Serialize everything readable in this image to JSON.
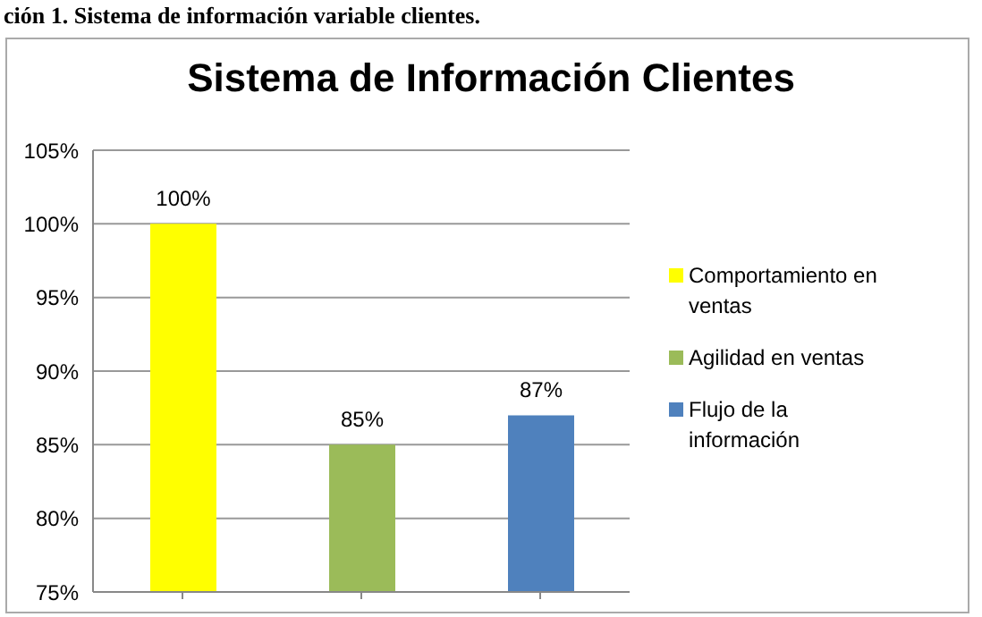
{
  "chart_data": {
    "type": "bar",
    "title": "Sistema de Información Clientes",
    "annotations": [
      "ción 1. Sistema de información variable clientes."
    ],
    "categories": [
      null,
      null,
      null
    ],
    "series": [
      {
        "name": "Comportamiento en ventas",
        "color": "#ffff00",
        "values": [
          100,
          null,
          null
        ],
        "value_labels": [
          "100%",
          null,
          null
        ]
      },
      {
        "name": "Agilidad en ventas",
        "color": "#9bbb59",
        "values": [
          null,
          85,
          null
        ],
        "value_labels": [
          null,
          "85%",
          null
        ]
      },
      {
        "name": "Flujo de la información",
        "color": "#4f81bd",
        "values": [
          null,
          null,
          87
        ],
        "value_labels": [
          null,
          null,
          "87%"
        ]
      }
    ],
    "ylim": [
      75,
      105
    ],
    "yticks": [
      {
        "value": 75,
        "label": "75%"
      },
      {
        "value": 80,
        "label": "80%"
      },
      {
        "value": 85,
        "label": "85%"
      },
      {
        "value": 90,
        "label": "90%"
      },
      {
        "value": 95,
        "label": "95%"
      },
      {
        "value": 100,
        "label": "100%"
      },
      {
        "value": 105,
        "label": "105%"
      }
    ],
    "grid": "y",
    "legend": "right"
  }
}
